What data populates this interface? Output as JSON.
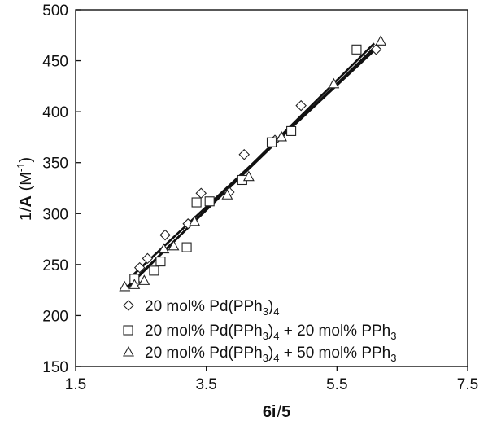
{
  "chart_data": {
    "type": "scatter",
    "title": "",
    "xlabel_parts": {
      "b1": "6i",
      "sep": "/",
      "b2": "5"
    },
    "ylabel_parts": {
      "pre": "1/",
      "bold": "A",
      "unit_open": " (M",
      "unit_sup": "-1",
      "unit_close": ")"
    },
    "xlim": [
      1.5,
      7.5
    ],
    "ylim": [
      150,
      500
    ],
    "xticks": [
      1.5,
      3.5,
      5.5,
      7.5
    ],
    "xtick_labels": [
      "1.5",
      "3.5",
      "5.5",
      "7.5"
    ],
    "yticks": [
      150,
      200,
      250,
      300,
      350,
      400,
      450,
      500
    ],
    "ytick_labels": [
      "150",
      "200",
      "250",
      "300",
      "350",
      "400",
      "450",
      "500"
    ],
    "grid": false,
    "legend_position": "bottom-center",
    "series": [
      {
        "marker": "diamond",
        "legend": {
          "text": "20 mol% Pd(PPh",
          "sub": "3",
          "tail": ")",
          "sub2": "4",
          "tail2": ""
        },
        "x": [
          2.42,
          2.48,
          2.6,
          2.87,
          3.22,
          3.42,
          3.85,
          4.08,
          4.55,
          4.95,
          6.1
        ],
        "y": [
          232,
          247,
          256,
          279,
          290,
          320,
          321,
          358,
          372,
          406,
          461
        ],
        "fit": [
          [
            2.35,
            238
          ],
          [
            6.12,
            463
          ]
        ]
      },
      {
        "marker": "square",
        "legend": {
          "text": "20 mol% Pd(PPh",
          "sub": "3",
          "tail": ")",
          "sub2": "4",
          "tail2": " + 20 mol% PPh",
          "sub3": "3"
        },
        "x": [
          2.4,
          2.7,
          2.8,
          3.2,
          3.35,
          3.55,
          4.05,
          4.5,
          4.8,
          5.8
        ],
        "y": [
          236,
          244,
          253,
          267,
          311,
          312,
          333,
          370,
          381,
          461
        ],
        "fit": [
          [
            2.3,
            228
          ],
          [
            6.07,
            467
          ]
        ]
      },
      {
        "marker": "triangle",
        "legend": {
          "text": "20 mol% Pd(PPh",
          "sub": "3",
          "tail": ")",
          "sub2": "4",
          "tail2": " + 50 mol% PPh",
          "sub3": "3"
        },
        "x": [
          2.25,
          2.4,
          2.55,
          2.85,
          3.0,
          3.32,
          3.82,
          4.15,
          4.65,
          5.45,
          6.17
        ],
        "y": [
          228,
          230,
          234,
          265,
          268,
          292,
          318,
          336,
          375,
          427,
          469
        ],
        "fit": [
          [
            2.25,
            226
          ],
          [
            6.17,
            469
          ]
        ]
      }
    ]
  }
}
